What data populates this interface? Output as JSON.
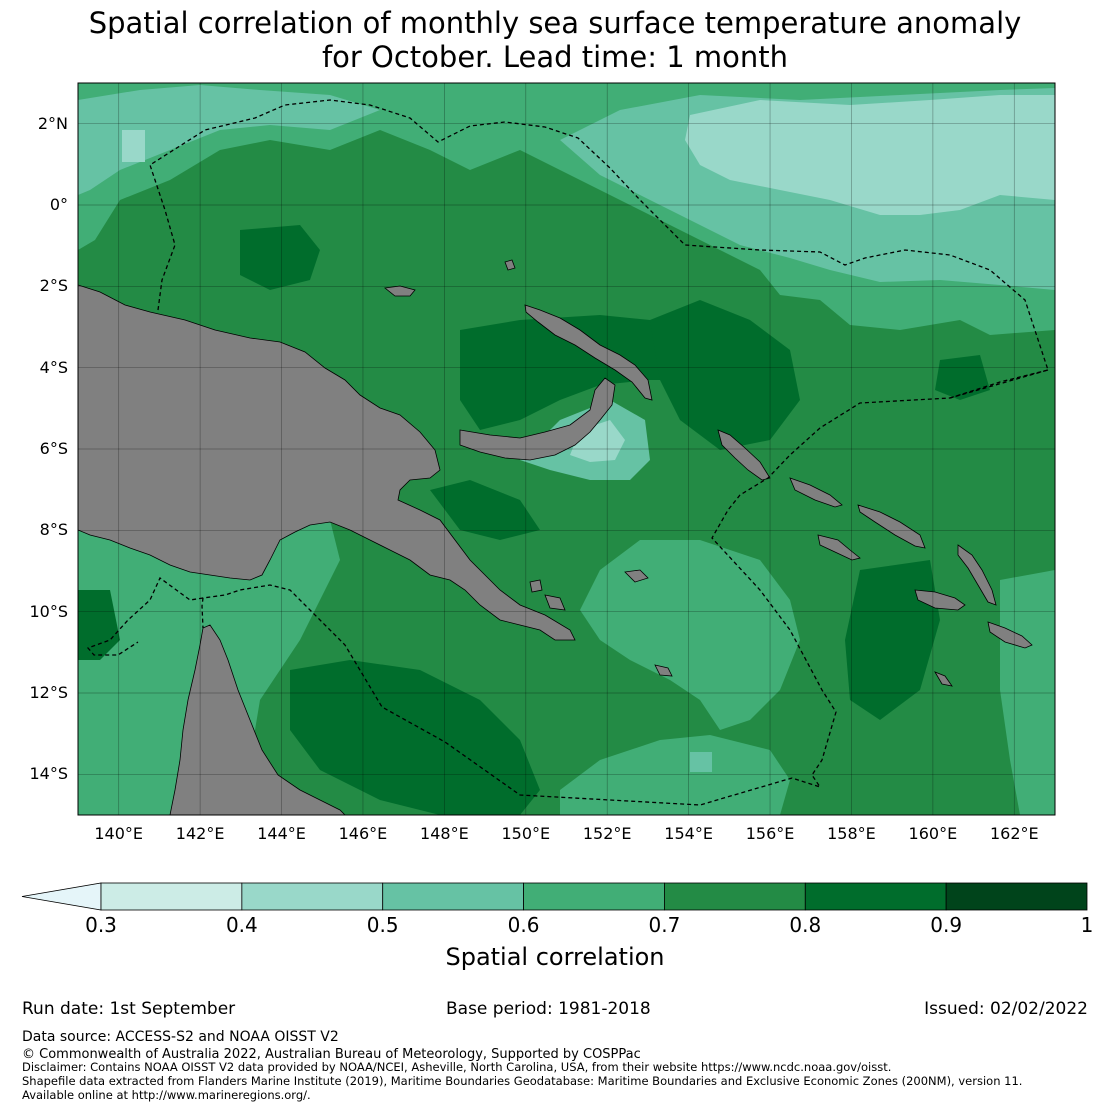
{
  "title": {
    "line1": "Spatial correlation of monthly sea surface temperature anomaly",
    "line2": "for October. Lead time: 1 month"
  },
  "map": {
    "lon_range": [
      139,
      163
    ],
    "lat_range": [
      -15,
      3
    ],
    "lat_ticks": [
      {
        "lat": 2,
        "label": "2°N"
      },
      {
        "lat": 0,
        "label": "0°"
      },
      {
        "lat": -2,
        "label": "2°S"
      },
      {
        "lat": -4,
        "label": "4°S"
      },
      {
        "lat": -6,
        "label": "6°S"
      },
      {
        "lat": -8,
        "label": "8°S"
      },
      {
        "lat": -10,
        "label": "10°S"
      },
      {
        "lat": -12,
        "label": "12°S"
      },
      {
        "lat": -14,
        "label": "14°S"
      }
    ],
    "lon_ticks": [
      {
        "lon": 140,
        "label": "140°E"
      },
      {
        "lon": 142,
        "label": "142°E"
      },
      {
        "lon": 144,
        "label": "144°E"
      },
      {
        "lon": 146,
        "label": "146°E"
      },
      {
        "lon": 148,
        "label": "148°E"
      },
      {
        "lon": 150,
        "label": "150°E"
      },
      {
        "lon": 152,
        "label": "152°E"
      },
      {
        "lon": 154,
        "label": "154°E"
      },
      {
        "lon": 156,
        "label": "156°E"
      },
      {
        "lon": 158,
        "label": "158°E"
      },
      {
        "lon": 160,
        "label": "160°E"
      },
      {
        "lon": 162,
        "label": "162°E"
      }
    ],
    "colors": {
      "land": "#808080",
      "c_lt03": "#e5f5f9",
      "c_03_04": "#ccece6",
      "c_04_05": "#99d8c9",
      "c_05_06": "#66c2a4",
      "c_06_07": "#41ae76",
      "c_07_08": "#238b45",
      "c_08_09": "#006d2c",
      "c_09_10": "#00441b"
    }
  },
  "colorbar": {
    "ticks": [
      "0.3",
      "0.4",
      "0.5",
      "0.6",
      "0.7",
      "0.8",
      "0.9",
      "1"
    ],
    "label": "Spatial correlation"
  },
  "footer": {
    "run_date": "Run date: 1st September",
    "base_period": "Base period: 1981-2018",
    "issued": "Issued: 02/02/2022",
    "data_source": "Data source: ACCESS-S2 and NOAA OISST V2",
    "copyright": "© Commonwealth of Australia 2022, Australian Bureau of Meteorology, Supported by COSPPac",
    "disclaimer": "Disclaimer: Contains NOAA OISST V2 data provided by NOAA/NCEI, Asheville, North Carolina, USA, from their website https://www.ncdc.noaa.gov/oisst.",
    "shapefile": "Shapefile data extracted from Flanders Marine Institute (2019), Maritime Boundaries Geodatabase: Maritime Boundaries and Exclusive Economic Zones (200NM), version 11.",
    "available": "Available online at http://www.marineregions.org/."
  }
}
